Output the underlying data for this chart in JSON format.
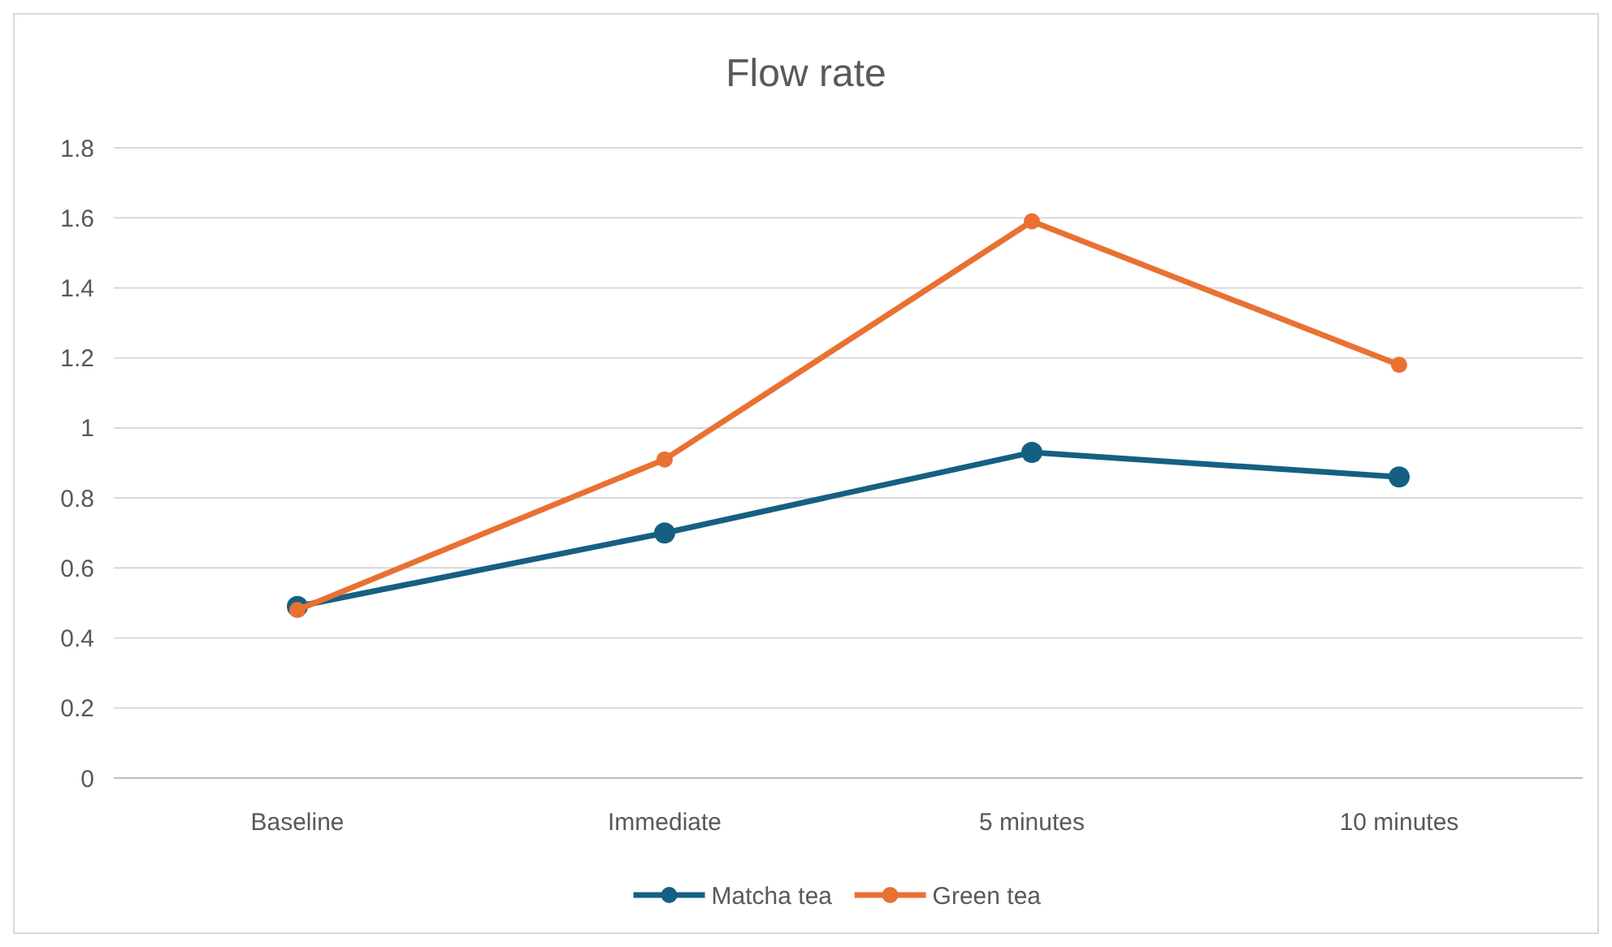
{
  "chart_data": {
    "type": "line",
    "title": "Flow rate",
    "categories": [
      "Baseline",
      "Immediate",
      "5 minutes",
      "10 minutes"
    ],
    "series": [
      {
        "name": "Matcha tea",
        "color": "#156082",
        "values": [
          0.49,
          0.7,
          0.93,
          0.86
        ]
      },
      {
        "name": "Green tea",
        "color": "#e97132",
        "values": [
          0.48,
          0.91,
          1.59,
          1.18
        ]
      }
    ],
    "ylim": [
      0,
      1.8
    ],
    "yticks": [
      0,
      0.2,
      0.4,
      0.6,
      0.8,
      1,
      1.2,
      1.4,
      1.6,
      1.8
    ],
    "grid": "y",
    "legend": "bottom",
    "marker": "circle",
    "line_style": "solid"
  }
}
